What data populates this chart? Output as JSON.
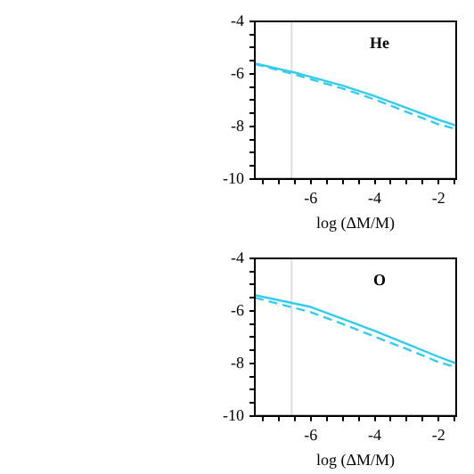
{
  "chart_data": [
    {
      "type": "line",
      "xlabel": "log (ΔM/M)",
      "annotations": [
        "He"
      ],
      "xlim": [
        -7.75,
        -1.45
      ],
      "ylim": [
        -10,
        -4
      ],
      "xticks": [
        {
          "value": -7.5,
          "label": null
        },
        {
          "value": -7,
          "label": null
        },
        {
          "value": -6.5,
          "label": null
        },
        -6,
        {
          "value": -5.5,
          "label": null
        },
        {
          "value": -5,
          "label": null
        },
        {
          "value": -4.5,
          "label": null
        },
        -4,
        {
          "value": -3.5,
          "label": null
        },
        {
          "value": -3,
          "label": null
        },
        {
          "value": -2.5,
          "label": null
        },
        -2,
        {
          "value": -1.5,
          "label": null
        }
      ],
      "yticks": [
        -10,
        {
          "value": -9.5,
          "label": null
        },
        {
          "value": -9,
          "label": null
        },
        {
          "value": -8.5,
          "label": null
        },
        -8,
        {
          "value": -7.5,
          "label": null
        },
        {
          "value": -7,
          "label": null
        },
        {
          "value": -6.5,
          "label": null
        },
        -6,
        {
          "value": -5.5,
          "label": null
        },
        {
          "value": -5,
          "label": null
        },
        {
          "value": -4.5,
          "label": null
        },
        -4
      ],
      "ref_lines": [
        {
          "axis": "x",
          "value": -6.6,
          "color": "#dddddd"
        }
      ],
      "series": [
        {
          "color": "#33ccee",
          "line_style": "solid",
          "x": [
            -7.75,
            -6.5,
            -5,
            -4,
            -3,
            -2,
            -1.45
          ],
          "values": [
            -5.6,
            -5.95,
            -6.45,
            -6.85,
            -7.3,
            -7.75,
            -7.97
          ]
        },
        {
          "color": "#33ccee",
          "line_style": "dashed",
          "x": [
            -7.75,
            -6.5,
            -5,
            -4,
            -3,
            -2,
            -1.45
          ],
          "values": [
            -5.62,
            -6.02,
            -6.56,
            -6.97,
            -7.45,
            -7.92,
            -8.1
          ]
        }
      ]
    },
    {
      "type": "line",
      "xlabel": "log (ΔM/M)",
      "annotations": [
        "O"
      ],
      "xlim": [
        -7.75,
        -1.45
      ],
      "ylim": [
        -10,
        -4
      ],
      "xticks": [
        {
          "value": -7.5,
          "label": null
        },
        {
          "value": -7,
          "label": null
        },
        {
          "value": -6.5,
          "label": null
        },
        -6,
        {
          "value": -5.5,
          "label": null
        },
        {
          "value": -5,
          "label": null
        },
        {
          "value": -4.5,
          "label": null
        },
        -4,
        {
          "value": -3.5,
          "label": null
        },
        {
          "value": -3,
          "label": null
        },
        {
          "value": -2.5,
          "label": null
        },
        -2,
        {
          "value": -1.5,
          "label": null
        }
      ],
      "yticks": [
        -10,
        {
          "value": -9.5,
          "label": null
        },
        {
          "value": -9,
          "label": null
        },
        {
          "value": -8.5,
          "label": null
        },
        -8,
        {
          "value": -7.5,
          "label": null
        },
        {
          "value": -7,
          "label": null
        },
        {
          "value": -6.5,
          "label": null
        },
        -6,
        {
          "value": -5.5,
          "label": null
        },
        {
          "value": -5,
          "label": null
        },
        {
          "value": -4.5,
          "label": null
        },
        -4
      ],
      "ref_lines": [
        {
          "axis": "x",
          "value": -6.6,
          "color": "#dddddd"
        }
      ],
      "series": [
        {
          "color": "#33ccee",
          "line_style": "solid",
          "x": [
            -7.75,
            -6,
            -5,
            -4,
            -3,
            -2,
            -1.45
          ],
          "values": [
            -5.4,
            -5.85,
            -6.3,
            -6.76,
            -7.25,
            -7.75,
            -8.0
          ]
        },
        {
          "color": "#33ccee",
          "line_style": "dashed",
          "x": [
            -7.75,
            -6,
            -5,
            -4,
            -3,
            -2,
            -1.45
          ],
          "values": [
            -5.5,
            -6.05,
            -6.5,
            -6.98,
            -7.45,
            -7.95,
            -8.15
          ]
        }
      ]
    }
  ]
}
